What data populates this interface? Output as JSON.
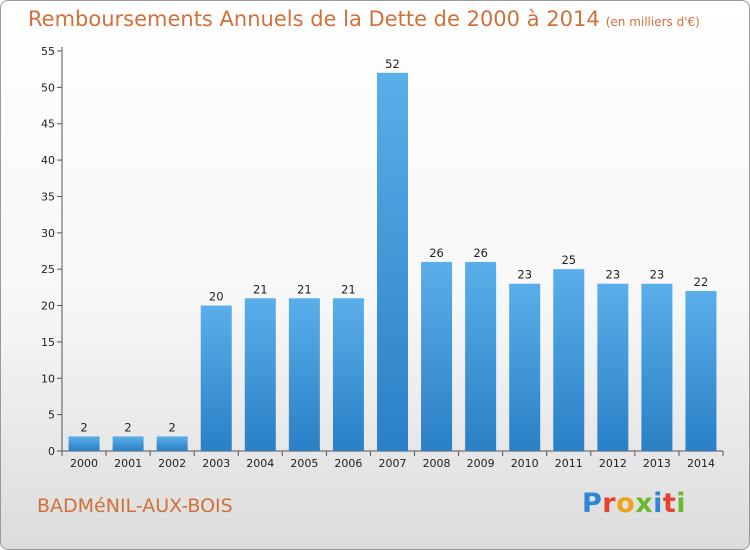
{
  "title": "Remboursements Annuels de la Dette de 2000 à 2014",
  "unit": "(en milliers d'€)",
  "commune": "BADMéNIL-AUX-BOIS",
  "logo": {
    "letters": [
      "P",
      "r",
      "o",
      "x",
      "i",
      "t",
      "i"
    ],
    "colors": [
      "#2f86d2",
      "#e8402e",
      "#f0a11c",
      "#6cb82b",
      "#2f86d2",
      "#e8402e",
      "#6cb82b"
    ]
  },
  "colors": {
    "bar": "#3b96db",
    "text_accent": "#d2703a"
  },
  "chart_data": {
    "type": "bar",
    "title": "Remboursements Annuels de la Dette de 2000 à 2014",
    "categories": [
      "2000",
      "2001",
      "2002",
      "2003",
      "2004",
      "2005",
      "2006",
      "2007",
      "2008",
      "2009",
      "2010",
      "2011",
      "2012",
      "2013",
      "2014"
    ],
    "values": [
      2,
      2,
      2,
      20,
      21,
      21,
      21,
      52,
      26,
      26,
      23,
      25,
      23,
      23,
      22
    ],
    "yticks": [
      0,
      5,
      10,
      15,
      20,
      25,
      30,
      35,
      40,
      45,
      50,
      55
    ],
    "ylim": [
      0,
      55
    ],
    "grid": false,
    "legend": "none"
  }
}
